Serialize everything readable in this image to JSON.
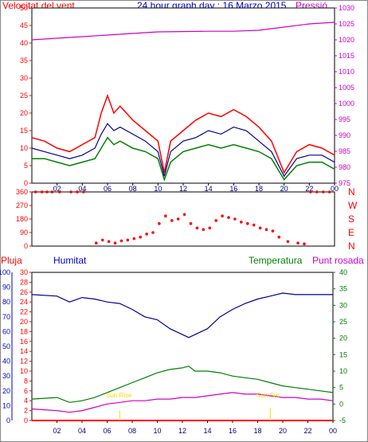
{
  "chart_data": [
    {
      "type": "line",
      "title": "24 hour graph day : 16 Marzo 2015",
      "left_axis_label": "Velocitat del vent",
      "right_axis_label": "Pressió",
      "left_ticks": [
        "0",
        "5",
        "10",
        "15",
        "20",
        "25",
        "30",
        "35",
        "40",
        "45",
        "50"
      ],
      "right_ticks": [
        "975",
        "980",
        "985",
        "990",
        "995",
        "1000",
        "1005",
        "1010",
        "1015",
        "1020",
        "1025",
        "1030"
      ],
      "x_ticks": [
        "02",
        "04",
        "06",
        "08",
        "10",
        "12",
        "14",
        "16",
        "18",
        "20",
        "22",
        "00"
      ],
      "ylim_left": [
        0,
        50
      ],
      "ylim_right": [
        975,
        1030
      ],
      "colors": {
        "gust": "#ff0000",
        "avg": "#000099",
        "speed": "#008000",
        "pressure": "#cc00cc"
      },
      "pressure": {
        "x": [
          0,
          2,
          4,
          6,
          8,
          10,
          12,
          14,
          16,
          18,
          20,
          22,
          24
        ],
        "y": [
          1020,
          1020.5,
          1021,
          1021.5,
          1022,
          1022.5,
          1022.6,
          1022.7,
          1022.7,
          1023,
          1024,
          1025,
          1025.5
        ]
      },
      "gust": {
        "x": [
          0,
          1,
          2,
          3,
          4,
          5,
          5.5,
          6,
          6.5,
          7,
          8,
          9,
          10,
          10.5,
          11,
          12,
          13,
          14,
          15,
          16,
          17,
          18,
          19,
          20,
          21,
          22,
          23,
          24
        ],
        "y": [
          13,
          12,
          10,
          9,
          11,
          13,
          20,
          25,
          20,
          22,
          18,
          15,
          12,
          3,
          12,
          15,
          18,
          20,
          19,
          21,
          19,
          16,
          12,
          3,
          9,
          11,
          10,
          8
        ]
      },
      "avg": {
        "x": [
          0,
          1,
          2,
          3,
          4,
          5,
          5.5,
          6,
          6.5,
          7,
          8,
          9,
          10,
          10.5,
          11,
          12,
          13,
          14,
          15,
          16,
          17,
          18,
          19,
          20,
          21,
          22,
          23,
          24
        ],
        "y": [
          10,
          9,
          8,
          7,
          8,
          10,
          14,
          17,
          15,
          16,
          14,
          12,
          9,
          2,
          9,
          12,
          13,
          15,
          14,
          16,
          15,
          12,
          9,
          2,
          7,
          8,
          8,
          6
        ]
      },
      "speed": {
        "x": [
          0,
          1,
          2,
          3,
          4,
          5,
          5.5,
          6,
          6.5,
          7,
          8,
          9,
          10,
          10.5,
          11,
          12,
          13,
          14,
          15,
          16,
          17,
          18,
          19,
          20,
          21,
          22,
          23,
          24
        ],
        "y": [
          7,
          7,
          6,
          5,
          6,
          7,
          10,
          13,
          11,
          12,
          10,
          9,
          7,
          1,
          6,
          9,
          10,
          11,
          10,
          11,
          10,
          9,
          7,
          1,
          5,
          6,
          6,
          4
        ]
      }
    },
    {
      "type": "scatter",
      "right_labels": [
        "N",
        "W",
        "S",
        "E",
        "N"
      ],
      "left_ticks": [
        "0",
        "90",
        "180",
        "270",
        "360"
      ],
      "ylim": [
        0,
        360
      ],
      "color": "#ff0000",
      "direction": {
        "x": [
          0.3,
          0.8,
          1.2,
          1.6,
          2.2,
          3.1,
          3.6,
          4.1,
          5.1,
          5.6,
          6.1,
          6.6,
          7.1,
          7.6,
          8.1,
          8.6,
          9.1,
          9.6,
          10.1,
          10.6,
          11.1,
          11.6,
          12.1,
          12.6,
          13.1,
          13.6,
          14.1,
          14.6,
          15.1,
          15.6,
          16.1,
          16.6,
          17.1,
          17.6,
          18.1,
          18.6,
          19.1,
          19.6,
          20.3,
          21.1,
          21.6,
          22.1,
          22.6,
          23.1,
          23.6
        ],
        "y": [
          360,
          360,
          360,
          360,
          360,
          360,
          360,
          360,
          20,
          40,
          30,
          20,
          35,
          40,
          50,
          60,
          80,
          90,
          150,
          200,
          170,
          180,
          210,
          150,
          120,
          110,
          120,
          170,
          200,
          190,
          180,
          160,
          150,
          140,
          120,
          110,
          100,
          60,
          30,
          20,
          15,
          360,
          360,
          360,
          360
        ]
      }
    },
    {
      "type": "line",
      "legend": [
        "Pluja",
        "Humitat",
        "Temperatura",
        "Punt rosada"
      ],
      "rain_ticks": [
        "0",
        "2",
        "4",
        "6",
        "8",
        "10",
        "12",
        "14",
        "16",
        "18",
        "20",
        "22",
        "24",
        "26",
        "28",
        "30"
      ],
      "humidity_ticks": [
        "0",
        "10",
        "20",
        "30",
        "40",
        "50",
        "60",
        "70",
        "80",
        "90",
        "100"
      ],
      "temp_ticks": [
        "-5",
        "0",
        "5",
        "10",
        "15",
        "20",
        "25",
        "30",
        "35",
        "40"
      ],
      "annotations": [
        {
          "text": "Sun Rise"
        },
        {
          "text": "Sun Set"
        }
      ],
      "colors": {
        "rain": "#ff0000",
        "humidity": "#000099",
        "temperature": "#008000",
        "dewpoint": "#cc00cc",
        "sun": "#ffd700"
      },
      "humidity": {
        "x": [
          0,
          2,
          3,
          4,
          5,
          6,
          7,
          8,
          9,
          10,
          11,
          12,
          12.5,
          13,
          14,
          15,
          16,
          17,
          18,
          19,
          20,
          21,
          22,
          23,
          24
        ],
        "y": [
          85,
          84,
          80,
          83,
          82,
          80,
          79,
          75,
          70,
          68,
          62,
          58,
          56,
          58,
          62,
          70,
          75,
          79,
          82,
          84,
          86,
          85,
          85,
          85,
          85
        ]
      },
      "temperature": {
        "x": [
          0,
          2,
          3,
          4,
          5,
          6,
          7,
          8,
          9,
          10,
          11,
          12,
          12.5,
          13,
          14,
          15,
          16,
          17,
          18,
          19,
          20,
          21,
          22,
          23,
          24
        ],
        "y": [
          1.5,
          2,
          0.5,
          1,
          2,
          3.5,
          5,
          6.5,
          8,
          9.5,
          10.5,
          11,
          11.5,
          10,
          10,
          9.5,
          8.5,
          8,
          7.5,
          6.5,
          5.5,
          5,
          4.5,
          4,
          3.5
        ]
      },
      "dewpoint": {
        "x": [
          0,
          2,
          3,
          4,
          5,
          6,
          7,
          8,
          9,
          10,
          11,
          12,
          12.5,
          13,
          14,
          15,
          16,
          17,
          18,
          19,
          20,
          21,
          22,
          23,
          24
        ],
        "y": [
          -1.5,
          -2,
          -2.5,
          -2,
          -1,
          0,
          0.5,
          1,
          1,
          1.5,
          1.5,
          2,
          2,
          2,
          2.5,
          3,
          3.5,
          3,
          3,
          2.5,
          2,
          2,
          1.5,
          1.5,
          1
        ]
      },
      "rain": {
        "x": [
          0,
          24
        ],
        "y": [
          0,
          0
        ]
      }
    }
  ]
}
